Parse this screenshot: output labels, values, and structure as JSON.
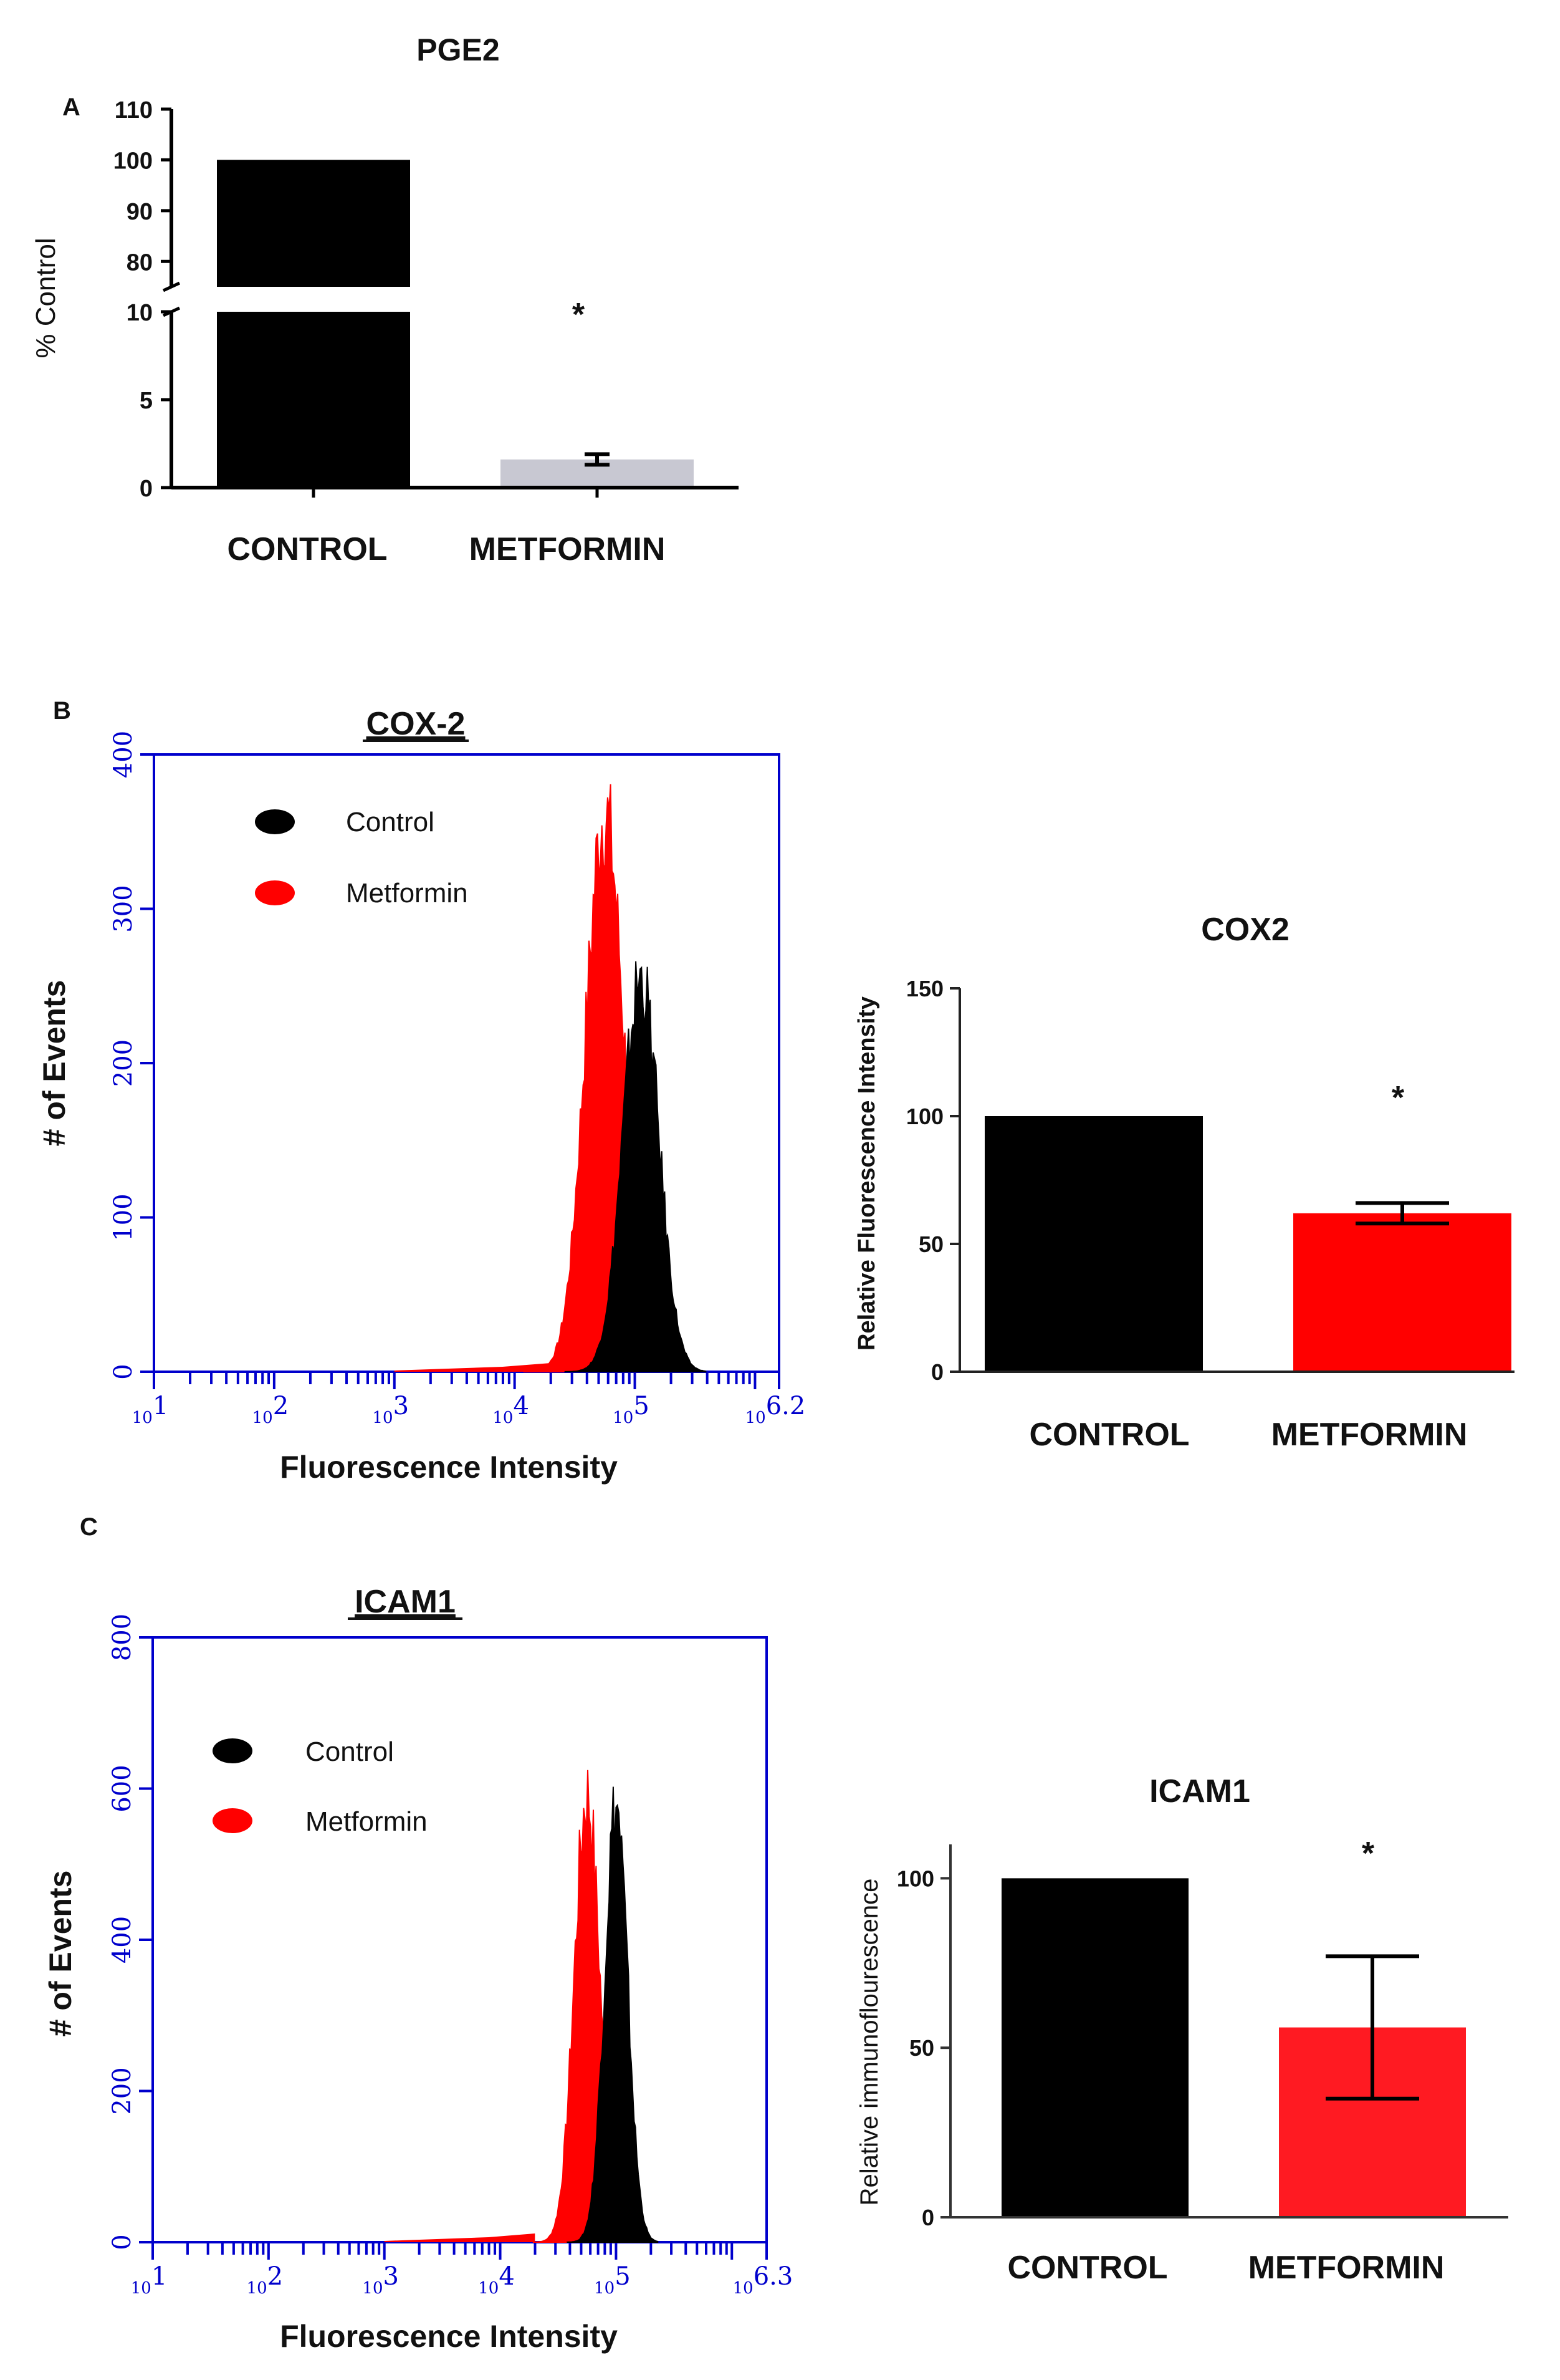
{
  "panels": {
    "a": "A",
    "b": "B",
    "c": "C"
  },
  "chart_data": [
    {
      "id": "pge2",
      "type": "bar",
      "title": "PGE2",
      "ylabel": "% Control",
      "xlabel": "",
      "categories": [
        "CONTROL",
        "METFORMIN"
      ],
      "values": [
        100,
        1.6
      ],
      "errors": [
        0,
        0.3
      ],
      "colors": [
        "#000000",
        "#c8c8d2"
      ],
      "axis_break": {
        "lower": [
          0,
          10
        ],
        "upper": [
          75,
          110
        ]
      },
      "yticks_lower": [
        0,
        5,
        10
      ],
      "yticks_upper": [
        80,
        90,
        100,
        110
      ],
      "annotation": "*"
    },
    {
      "id": "cox2-hist",
      "type": "area",
      "title": "COX-2",
      "xlabel": "Fluorescence Intensity",
      "ylabel": "# of Events",
      "xscale": "log",
      "xlim": [
        1,
        6.2
      ],
      "ylim": [
        0,
        400
      ],
      "xticklabels": [
        "10^1",
        "10^2",
        "10^3",
        "10^4",
        "10^5",
        "10^6.2"
      ],
      "yticks": [
        0,
        100,
        200,
        300,
        400
      ],
      "legend": [
        {
          "name": "Control",
          "color": "#000000"
        },
        {
          "name": "Metformin",
          "color": "#ff0000"
        }
      ],
      "series": [
        {
          "name": "Metformin",
          "color": "#ff0000",
          "peak_log": 4.75,
          "peak_count": 362,
          "sigma": 0.16
        },
        {
          "name": "Control",
          "color": "#000000",
          "peak_log": 5.05,
          "peak_count": 255,
          "sigma": 0.15
        }
      ]
    },
    {
      "id": "cox2-bar",
      "type": "bar",
      "title": "COX2",
      "ylabel": "Relative Fluorescence Intensity",
      "xlabel": "",
      "categories": [
        "CONTROL",
        "METFORMIN"
      ],
      "values": [
        100,
        62
      ],
      "errors": [
        0,
        4
      ],
      "colors": [
        "#000000",
        "#ff0000"
      ],
      "ylim": [
        0,
        150
      ],
      "yticks": [
        0,
        50,
        100,
        150
      ],
      "annotation": "*"
    },
    {
      "id": "icam1-hist",
      "type": "area",
      "title": "ICAM1",
      "xlabel": "Fluorescence Intensity",
      "ylabel": "# of Events",
      "xscale": "log",
      "xlim": [
        1,
        6.3
      ],
      "ylim": [
        0,
        800
      ],
      "xticklabels": [
        "10^1",
        "10^2",
        "10^3",
        "10^4",
        "10^5",
        "10^6.3"
      ],
      "yticks": [
        0,
        200,
        400,
        600,
        800
      ],
      "legend": [
        {
          "name": "Control",
          "color": "#000000"
        },
        {
          "name": "Metformin",
          "color": "#ff0000"
        }
      ],
      "series": [
        {
          "name": "Metformin",
          "color": "#ff0000",
          "peak_log": 4.75,
          "peak_count": 590,
          "sigma": 0.11
        },
        {
          "name": "Control",
          "color": "#000000",
          "peak_log": 5.0,
          "peak_count": 575,
          "sigma": 0.1
        }
      ]
    },
    {
      "id": "icam1-bar",
      "type": "bar",
      "title": "ICAM1",
      "ylabel": "Relative immunoflourescence",
      "xlabel": "",
      "categories": [
        "CONTROL",
        "METFORMIN"
      ],
      "values": [
        100,
        56
      ],
      "errors": [
        0,
        21
      ],
      "colors": [
        "#000000",
        "#ff1a22"
      ],
      "ylim": [
        0,
        110
      ],
      "yticks": [
        0,
        50,
        100
      ],
      "annotation": "*"
    }
  ]
}
